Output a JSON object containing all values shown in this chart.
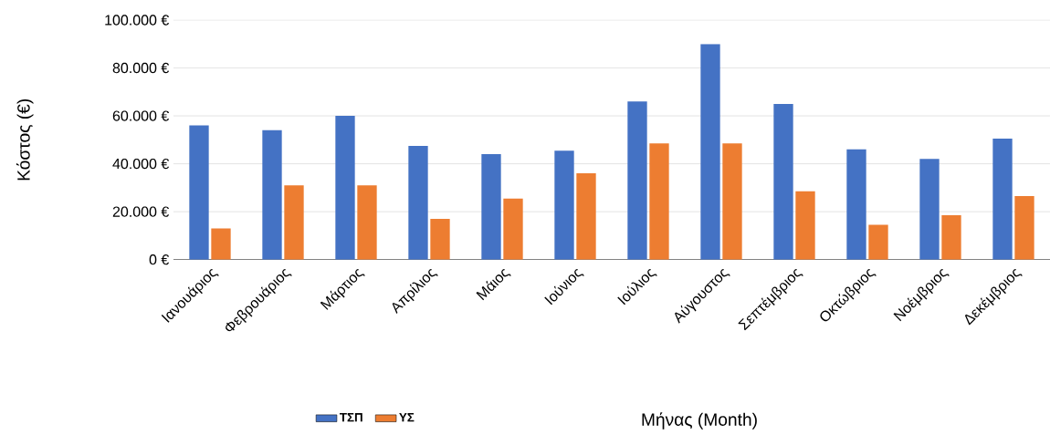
{
  "chart_data": {
    "type": "bar",
    "xlabel": "Μήνας (Month)",
    "ylabel": "Κόστος (€)",
    "categories": [
      "Ιανουάριος",
      "Φεβρουάριος",
      "Μάρτιος",
      "Απρίλιος",
      "Μάιος",
      "Ιούνιος",
      "Ιούλιος",
      "Αύγουστος",
      "Σεπτέμβριος",
      "Οκτώβριος",
      "Νοέμβριος",
      "Δεκέμβριος"
    ],
    "series": [
      {
        "name": "ΤΣΠ",
        "color": "#4472c4",
        "values": [
          56000,
          54000,
          60000,
          47500,
          44000,
          45500,
          66000,
          90000,
          65000,
          46000,
          42000,
          50500
        ]
      },
      {
        "name": "ΥΣ",
        "color": "#ed7d31",
        "values": [
          13000,
          31000,
          31000,
          17000,
          25500,
          36000,
          48500,
          48500,
          28500,
          14500,
          18500,
          26500
        ]
      }
    ],
    "ylim": [
      0,
      100000
    ],
    "yticks": [
      {
        "value": 0,
        "label": "0 €"
      },
      {
        "value": 20000,
        "label": "20.000 €"
      },
      {
        "value": 40000,
        "label": "40.000 €"
      },
      {
        "value": 60000,
        "label": "60.000 €"
      },
      {
        "value": 80000,
        "label": "80.000 €"
      },
      {
        "value": 100000,
        "label": "100.000 €"
      }
    ],
    "grid": "y",
    "legend": "bottom"
  }
}
